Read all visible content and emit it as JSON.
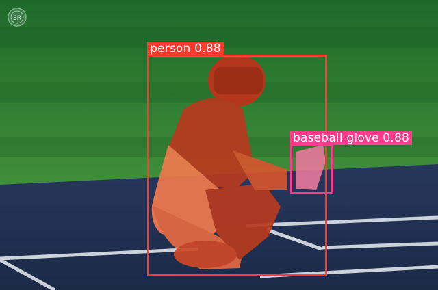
{
  "watermark": {
    "icon": "logo-seal-icon",
    "text": "SR"
  },
  "detections": [
    {
      "label": "person 0.88",
      "color": "#ff3b30",
      "mask_color": "#ff5a3c"
    },
    {
      "label": "baseball glove 0.88",
      "color": "#ff3b8b",
      "mask_color": "#ff6fa5"
    }
  ]
}
